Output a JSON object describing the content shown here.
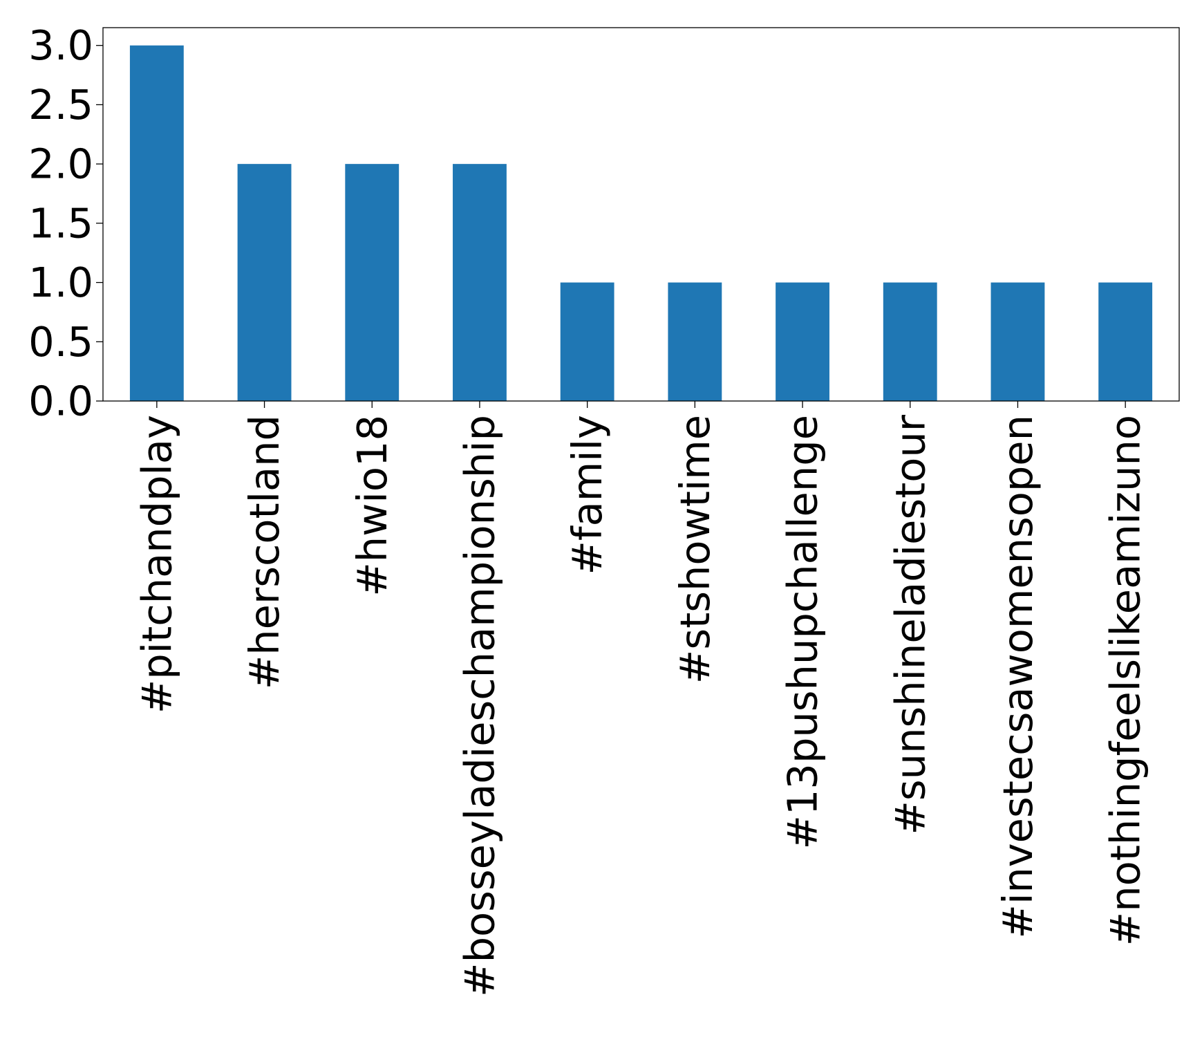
{
  "chart_data": {
    "type": "bar",
    "title": "",
    "xlabel": "",
    "ylabel": "",
    "categories": [
      "#pitchandplay",
      "#herscotland",
      "#hwio18",
      "#bosseyladieschampionship",
      "#family",
      "#stshowtime",
      "#13pushupchallenge",
      "#sunshineladiestour",
      "#investecsawomensopen",
      "#nothingfeelslikeamizuno"
    ],
    "values": [
      3,
      2,
      2,
      2,
      1,
      1,
      1,
      1,
      1,
      1
    ],
    "ylim": [
      0,
      3.15
    ],
    "yticks": [
      0.0,
      0.5,
      1.0,
      1.5,
      2.0,
      2.5,
      3.0
    ],
    "ytick_labels": [
      "0.0",
      "0.5",
      "1.0",
      "1.5",
      "2.0",
      "2.5",
      "3.0"
    ],
    "grid": false,
    "legend": "none",
    "bar_color": "#1f77b4"
  }
}
